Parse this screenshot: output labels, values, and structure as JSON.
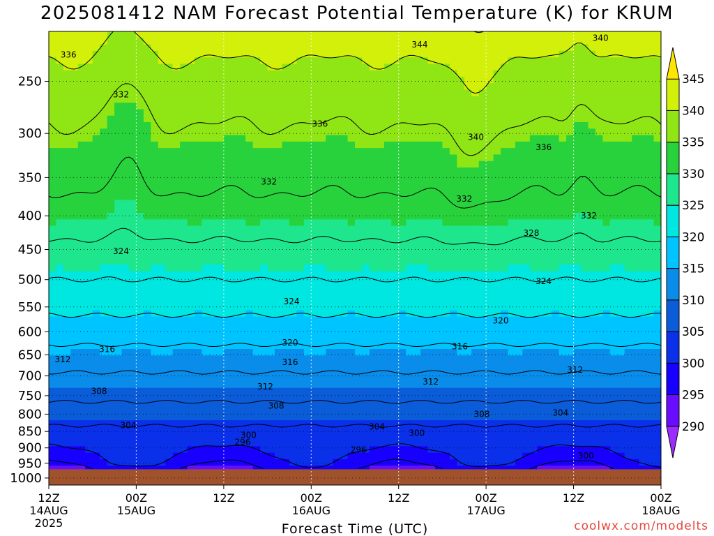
{
  "chart_data": {
    "type": "heatmap",
    "title": "2025081412 NAM Forecast Potential Temperature (K) for KRUM",
    "xlabel": "Forecast Time (UTC)",
    "ylabel": "",
    "x_ticks": [
      {
        "hour": 0,
        "line1": "12Z",
        "line2": "14AUG",
        "line3": "2025"
      },
      {
        "hour": 12,
        "line1": "00Z",
        "line2": "15AUG",
        "line3": ""
      },
      {
        "hour": 24,
        "line1": "12Z",
        "line2": "",
        "line3": ""
      },
      {
        "hour": 36,
        "line1": "00Z",
        "line2": "16AUG",
        "line3": ""
      },
      {
        "hour": 48,
        "line1": "12Z",
        "line2": "",
        "line3": ""
      },
      {
        "hour": 60,
        "line1": "00Z",
        "line2": "17AUG",
        "line3": ""
      },
      {
        "hour": 72,
        "line1": "12Z",
        "line2": "",
        "line3": ""
      },
      {
        "hour": 84,
        "line1": "00Z",
        "line2": "18AUG",
        "line3": ""
      }
    ],
    "xlim": [
      0,
      84
    ],
    "y_ticks": [
      250,
      300,
      350,
      400,
      450,
      500,
      550,
      600,
      650,
      700,
      750,
      800,
      850,
      900,
      950,
      1000
    ],
    "ylim": [
      1025,
      210
    ],
    "ground_pressure": 970,
    "grid": true,
    "colorbar": {
      "ticks": [
        290,
        295,
        300,
        305,
        310,
        315,
        320,
        325,
        330,
        335,
        340,
        345
      ],
      "colors": [
        "#9d2bff",
        "#6a0dff",
        "#1800ff",
        "#0a30ea",
        "#0a5cd8",
        "#0a8cea",
        "#00c4ff",
        "#00e6e0",
        "#1ee68c",
        "#28d23c",
        "#90e614",
        "#d2f00a",
        "#ffe600"
      ]
    },
    "contour_levels": [
      296,
      300,
      304,
      308,
      312,
      316,
      320,
      324,
      328,
      332,
      336,
      340,
      344
    ],
    "pressure_profile": [
      1000,
      950,
      900,
      850,
      800,
      750,
      700,
      650,
      600,
      550,
      500,
      450,
      400,
      350,
      300,
      250,
      200
    ],
    "base_theta": [
      293,
      298,
      301,
      303,
      306,
      309,
      311.5,
      314.5,
      318,
      321,
      324,
      327,
      330.5,
      333,
      335.5,
      338.5,
      343
    ],
    "contour_labels": [
      {
        "hour": 2.7,
        "p": 228,
        "label": "336"
      },
      {
        "hour": 9.9,
        "p": 262,
        "label": "332"
      },
      {
        "hour": 37.2,
        "p": 290,
        "label": "336"
      },
      {
        "hour": 50.9,
        "p": 220,
        "label": "344"
      },
      {
        "hour": 58.6,
        "p": 304,
        "label": "340"
      },
      {
        "hour": 75.7,
        "p": 215,
        "label": "340"
      },
      {
        "hour": 67.9,
        "p": 315,
        "label": "336"
      },
      {
        "hour": 30.2,
        "p": 355,
        "label": "332"
      },
      {
        "hour": 57.0,
        "p": 377,
        "label": "332"
      },
      {
        "hour": 74.1,
        "p": 400,
        "label": "332"
      },
      {
        "hour": 66.2,
        "p": 425,
        "label": "328"
      },
      {
        "hour": 9.9,
        "p": 453,
        "label": "324"
      },
      {
        "hour": 33.3,
        "p": 540,
        "label": "324"
      },
      {
        "hour": 67.9,
        "p": 503,
        "label": "324"
      },
      {
        "hour": 62.0,
        "p": 577,
        "label": "320"
      },
      {
        "hour": 33.1,
        "p": 623,
        "label": "320"
      },
      {
        "hour": 56.4,
        "p": 632,
        "label": "316"
      },
      {
        "hour": 8.0,
        "p": 638,
        "label": "316"
      },
      {
        "hour": 33.1,
        "p": 667,
        "label": "316"
      },
      {
        "hour": 1.9,
        "p": 661,
        "label": "312"
      },
      {
        "hour": 29.7,
        "p": 727,
        "label": "312"
      },
      {
        "hour": 52.4,
        "p": 714,
        "label": "312"
      },
      {
        "hour": 72.2,
        "p": 685,
        "label": "312"
      },
      {
        "hour": 6.9,
        "p": 738,
        "label": "308"
      },
      {
        "hour": 31.2,
        "p": 777,
        "label": "308"
      },
      {
        "hour": 59.4,
        "p": 800,
        "label": "308"
      },
      {
        "hour": 10.9,
        "p": 832,
        "label": "304"
      },
      {
        "hour": 45.0,
        "p": 836,
        "label": "304"
      },
      {
        "hour": 70.2,
        "p": 796,
        "label": "304"
      },
      {
        "hour": 27.4,
        "p": 861,
        "label": "300"
      },
      {
        "hour": 50.5,
        "p": 855,
        "label": "300"
      },
      {
        "hour": 73.7,
        "p": 925,
        "label": "300"
      },
      {
        "hour": 26.6,
        "p": 882,
        "label": "296"
      },
      {
        "hour": 42.5,
        "p": 906,
        "label": "296"
      }
    ]
  },
  "credit": "coolwx.com/modelts"
}
